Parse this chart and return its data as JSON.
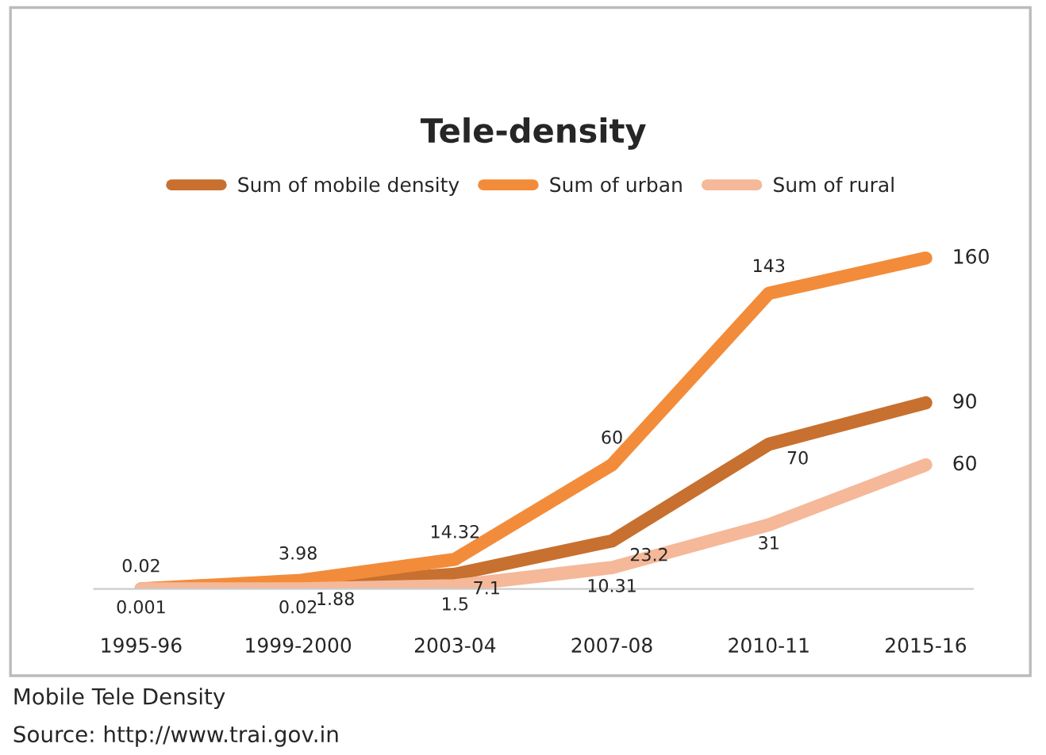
{
  "chart_data": {
    "type": "line",
    "title": "Tele-density",
    "categories": [
      "1995-96",
      "1999-2000",
      "2003-04",
      "2007-08",
      "2010-11",
      "2015-16"
    ],
    "series": [
      {
        "name": "Sum of mobile density",
        "color": "#c8702f",
        "values": [
          0.02,
          1.88,
          7.1,
          23.2,
          70,
          90
        ],
        "value_labels": [
          "0.02",
          "1.88",
          "7.1",
          "23.2",
          "70",
          "90"
        ]
      },
      {
        "name": "Sum of urban",
        "color": "#f28c3a",
        "values": [
          0.02,
          3.98,
          14.32,
          60,
          143,
          160
        ],
        "value_labels": [
          null,
          "3.98",
          "14.32",
          "60",
          "143",
          "160"
        ]
      },
      {
        "name": "Sum of rural",
        "color": "#f5b899",
        "values": [
          0.001,
          0.02,
          1.5,
          10.31,
          31,
          60
        ],
        "value_labels": [
          "0.001",
          "0.02",
          "1.5",
          "10.31",
          "31",
          "60"
        ]
      }
    ],
    "relative": false,
    "legend": "top",
    "grid": false,
    "line_style": "solid",
    "marker": "none",
    "annotations": [
      "Mobile Tele Density",
      "Source: http://www.trai.gov.in"
    ]
  }
}
